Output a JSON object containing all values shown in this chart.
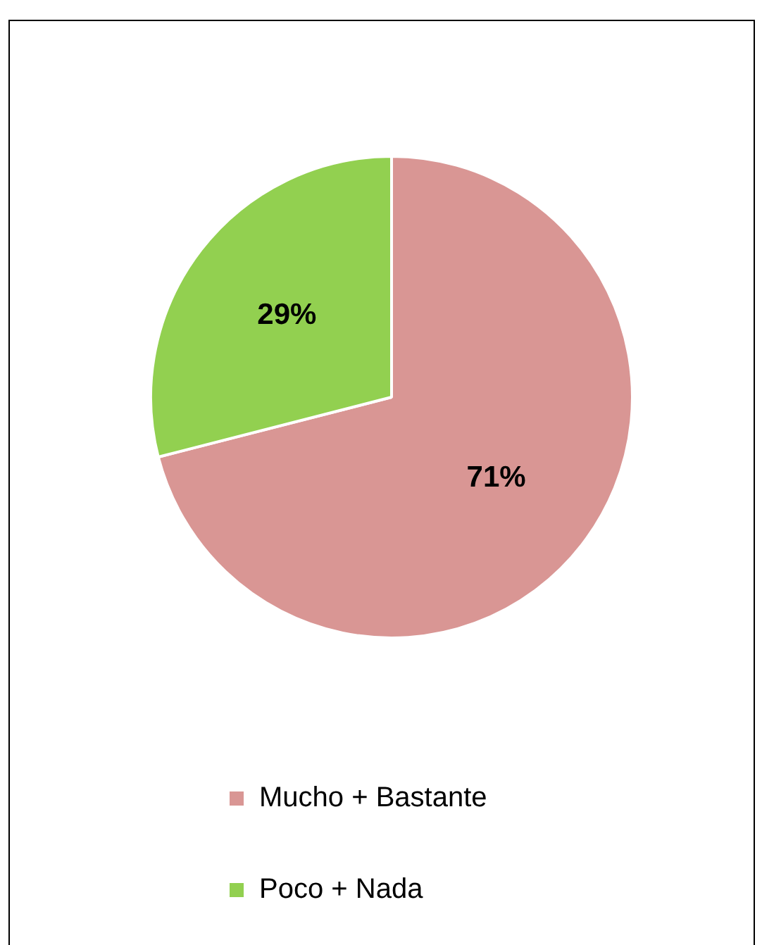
{
  "chart_data": {
    "type": "pie",
    "categories": [
      "Mucho + Bastante",
      "Poco + Nada"
    ],
    "values": [
      71,
      29
    ],
    "colors": [
      "#d99694",
      "#92d050"
    ],
    "value_labels": [
      "71%",
      "29%"
    ],
    "legend": "bottom"
  }
}
